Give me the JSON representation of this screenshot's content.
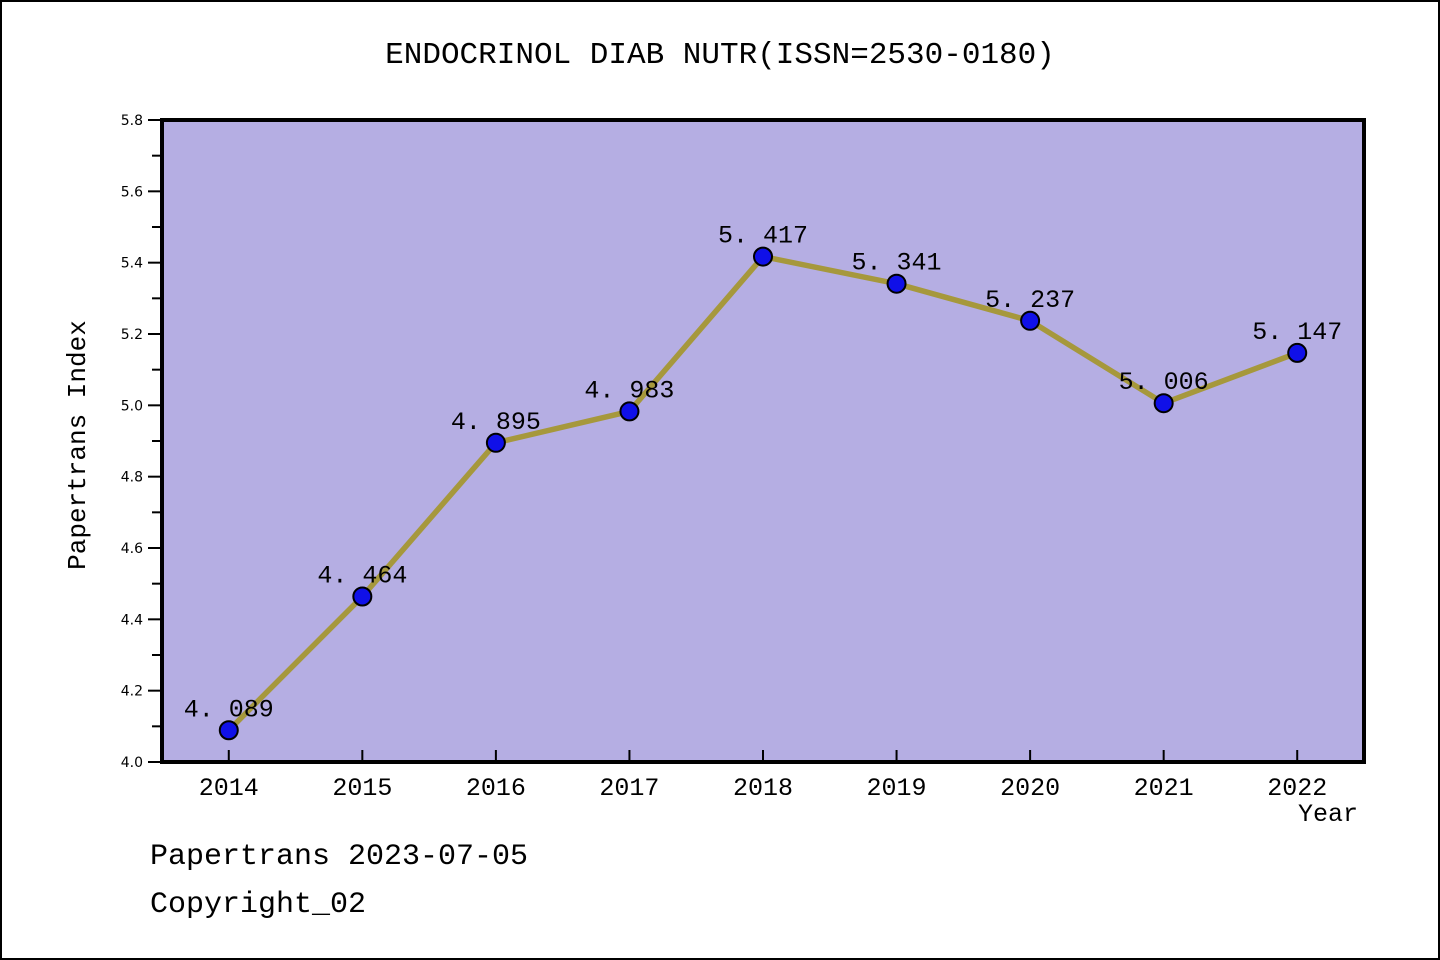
{
  "header": {
    "title": "ENDOCRINOL DIAB NUTR(ISSN=2530-0180)"
  },
  "footer": {
    "line1": "Papertrans 2023-07-05",
    "line2": "Copyright_02"
  },
  "chart_data": {
    "type": "line",
    "title": "ENDOCRINOL DIAB NUTR(ISSN=2530-0180)",
    "xlabel": "Year",
    "ylabel": "Papertrans Index",
    "x": [
      2014,
      2015,
      2016,
      2017,
      2018,
      2019,
      2020,
      2021,
      2022
    ],
    "series": [
      {
        "name": "Papertrans Index",
        "values": [
          4.089,
          4.464,
          4.895,
          4.983,
          5.417,
          5.341,
          5.237,
          5.006,
          5.147
        ]
      }
    ],
    "point_labels": [
      "4. 089",
      "4. 464",
      "4. 895",
      "4. 983",
      "5. 417",
      "5. 341",
      "5. 237",
      "5. 006",
      "5. 147"
    ],
    "xlim": [
      2013.5,
      2022.5
    ],
    "ylim": [
      4.0,
      5.8
    ],
    "y_major_step": 0.2,
    "y_minor_step": 0.1,
    "grid": false,
    "legend": false,
    "marker": "circle",
    "colors": {
      "plot_bg": "#b5aee3",
      "line": "#a6983c",
      "marker_fill": "#1010e8",
      "marker_edge": "#000000",
      "spine": "#000000",
      "text": "#000000"
    }
  }
}
